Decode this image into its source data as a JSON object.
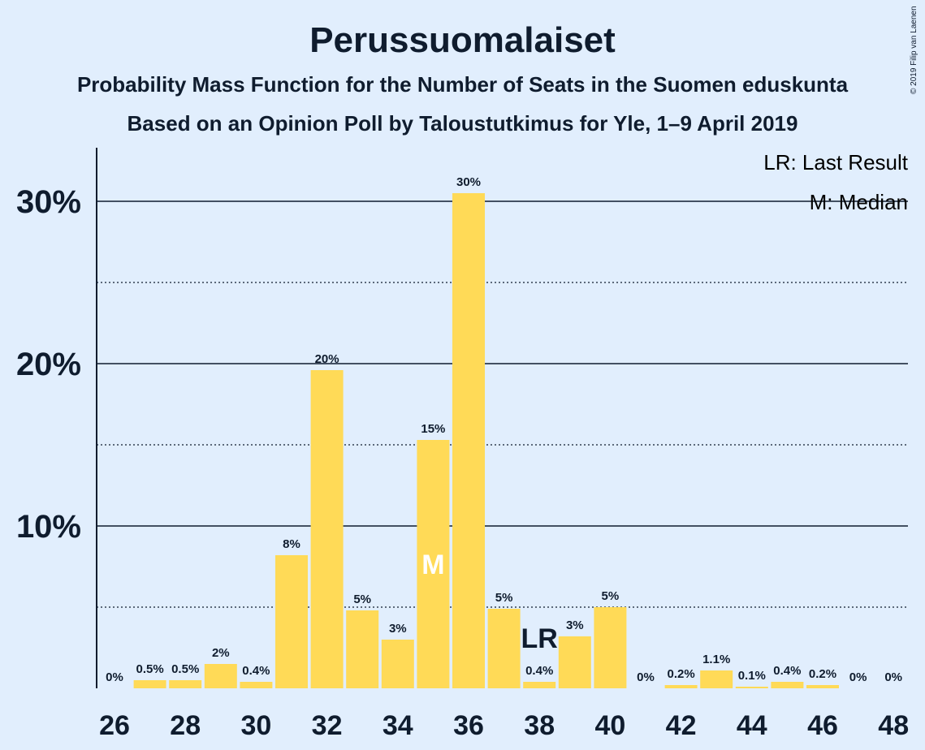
{
  "title": "Perussuomalaiset",
  "subtitle1": "Probability Mass Function for the Number of Seats in the Suomen eduskunta",
  "subtitle2": "Based on an Opinion Poll by Taloustutkimus for Yle, 1–9 April 2019",
  "copyright": "© 2019 Filip van Laenen",
  "legend": {
    "last_result": "LR: Last Result",
    "median": "M: Median"
  },
  "colors": {
    "background": "#e1eefd",
    "bar": "#ffda57",
    "text": "#0f1c2e"
  },
  "chart_data": {
    "type": "bar",
    "x": [
      26,
      27,
      28,
      29,
      30,
      31,
      32,
      33,
      34,
      35,
      36,
      37,
      38,
      39,
      40,
      41,
      42,
      43,
      44,
      45,
      46,
      47,
      48
    ],
    "values": [
      0,
      0.5,
      0.5,
      1.5,
      0.4,
      8.2,
      19.6,
      4.8,
      3.0,
      15.3,
      30.5,
      4.9,
      0.4,
      3.2,
      5.0,
      0,
      0.2,
      1.1,
      0.1,
      0.4,
      0.2,
      0,
      0
    ],
    "data_labels": [
      "0%",
      "0.5%",
      "0.5%",
      "2%",
      "0.4%",
      "8%",
      "20%",
      "5%",
      "3%",
      "15%",
      "30%",
      "5%",
      "0.4%",
      "3%",
      "5%",
      "0%",
      "0.2%",
      "1.1%",
      "0.1%",
      "0.4%",
      "0.2%",
      "0%",
      "0%"
    ],
    "x_tick_labels": [
      "26",
      "28",
      "30",
      "32",
      "34",
      "36",
      "38",
      "40",
      "42",
      "44",
      "46",
      "48"
    ],
    "y_tick_labels": [
      "10%",
      "20%",
      "30%"
    ],
    "ylim": [
      0,
      33
    ],
    "median": 35,
    "median_marker": "M",
    "last_result": 38,
    "last_result_marker": "LR",
    "grid": "solid at 10% intervals, dotted at 5% intervals",
    "legend_position": "top-right"
  }
}
